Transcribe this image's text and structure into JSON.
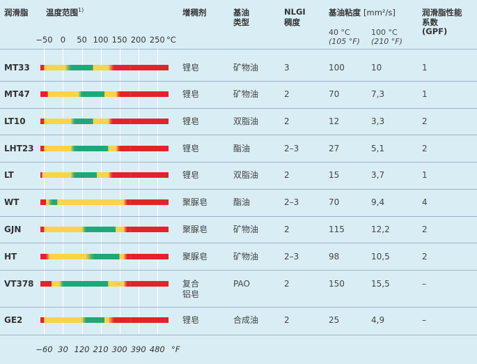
{
  "headers": {
    "grease": "润滑脂",
    "temp_range": "温度范围",
    "temp_range_note": "1)",
    "thickener": "增稠剂",
    "base_oil_type_1": "基油",
    "base_oil_type_2": "类型",
    "nlgi_1": "NLGI",
    "nlgi_2": "稠度",
    "viscosity": "基油粘度",
    "viscosity_unit": "[mm²/s]",
    "visc_40": "40 °C",
    "visc_40_f": "(105 °F)",
    "visc_100": "100 °C",
    "visc_100_f": "(210 °F)",
    "gpf_1": "润滑脂性能",
    "gpf_2": "系数",
    "gpf_3": "(GPF)"
  },
  "celsius_ticks": [
    "−50",
    "0",
    "50",
    "100",
    "150",
    "200",
    "250"
  ],
  "celsius_unit": "°C",
  "fahrenheit_ticks": [
    "−60",
    "30",
    "120",
    "210",
    "300",
    "390",
    "480"
  ],
  "fahrenheit_unit": "°F",
  "colors": {
    "red": "#e3232b",
    "yellow": "#f9d44a",
    "green": "#21a67a",
    "background": "#d9edf5"
  },
  "rows": [
    {
      "name": "MT33",
      "thickener": "锂皂",
      "oil": "矿物油",
      "nlgi": "3",
      "v40": "100",
      "v100": "10",
      "gpf": "1",
      "bands": [
        [
          -60,
          -50,
          "red"
        ],
        [
          -50,
          5,
          "yellow"
        ],
        [
          5,
          20,
          "y2g"
        ],
        [
          20,
          80,
          "green"
        ],
        [
          80,
          120,
          "yellow"
        ],
        [
          120,
          135,
          "y2r"
        ],
        [
          135,
          180,
          "red"
        ]
      ]
    },
    {
      "name": "MT47",
      "thickener": "锂皂",
      "oil": "矿物油",
      "nlgi": "2",
      "v40": "70",
      "v100": "7,3",
      "gpf": "1",
      "bands": [
        [
          -60,
          -40,
          "red"
        ],
        [
          -40,
          40,
          "yellow"
        ],
        [
          40,
          50,
          "y2g"
        ],
        [
          50,
          110,
          "green"
        ],
        [
          110,
          140,
          "yellow"
        ],
        [
          140,
          150,
          "y2r"
        ],
        [
          150,
          180,
          "red"
        ]
      ]
    },
    {
      "name": "LT10",
      "thickener": "锂皂",
      "oil": "双脂油",
      "nlgi": "2",
      "v40": "12",
      "v100": "3,3",
      "gpf": "2",
      "bands": [
        [
          -60,
          -50,
          "red"
        ],
        [
          -50,
          20,
          "yellow"
        ],
        [
          20,
          30,
          "y2g"
        ],
        [
          30,
          80,
          "green"
        ],
        [
          80,
          120,
          "yellow"
        ],
        [
          120,
          130,
          "y2r"
        ],
        [
          130,
          180,
          "red"
        ]
      ]
    },
    {
      "name": "LHT23",
      "thickener": "锂皂",
      "oil": "酯油",
      "nlgi": "2–3",
      "v40": "27",
      "v100": "5,1",
      "gpf": "2",
      "bands": [
        [
          -60,
          -50,
          "red"
        ],
        [
          -50,
          20,
          "yellow"
        ],
        [
          20,
          30,
          "y2g"
        ],
        [
          30,
          120,
          "green"
        ],
        [
          120,
          140,
          "yellow"
        ],
        [
          140,
          150,
          "y2r"
        ],
        [
          150,
          180,
          "red"
        ]
      ]
    },
    {
      "name": "LT",
      "thickener": "锂皂",
      "oil": "双脂油",
      "nlgi": "2",
      "v40": "15",
      "v100": "3,7",
      "gpf": "1",
      "bands": [
        [
          -60,
          -55,
          "red"
        ],
        [
          -55,
          20,
          "yellow"
        ],
        [
          20,
          30,
          "y2g"
        ],
        [
          30,
          90,
          "green"
        ],
        [
          90,
          120,
          "yellow"
        ],
        [
          120,
          130,
          "y2r"
        ],
        [
          130,
          180,
          "red"
        ]
      ]
    },
    {
      "name": "WT",
      "thickener": "聚脲皂",
      "oil": "酯油",
      "nlgi": "2–3",
      "v40": "70",
      "v100": "9,4",
      "gpf": "4",
      "bands": [
        [
          -60,
          -45,
          "red"
        ],
        [
          -45,
          -40,
          "yellow"
        ],
        [
          -40,
          -30,
          "y2g"
        ],
        [
          -30,
          -15,
          "green"
        ],
        [
          -15,
          160,
          "yellow"
        ],
        [
          160,
          170,
          "y2r"
        ],
        [
          170,
          180,
          "red"
        ]
      ]
    },
    {
      "name": "GJN",
      "thickener": "聚脲皂",
      "oil": "矿物油",
      "nlgi": "2",
      "v40": "115",
      "v100": "12,2",
      "gpf": "2",
      "bands": [
        [
          -60,
          -50,
          "red"
        ],
        [
          -50,
          50,
          "yellow"
        ],
        [
          50,
          60,
          "y2g"
        ],
        [
          60,
          140,
          "green"
        ],
        [
          140,
          160,
          "yellow"
        ],
        [
          160,
          170,
          "y2r"
        ],
        [
          170,
          180,
          "red"
        ]
      ]
    },
    {
      "name": "HT",
      "thickener": "聚脲皂",
      "oil": "矿物油",
      "nlgi": "2–3",
      "v40": "98",
      "v100": "10,5",
      "gpf": "2",
      "bands": [
        [
          -60,
          -45,
          "red"
        ],
        [
          -45,
          -35,
          "r2y"
        ],
        [
          -35,
          60,
          "yellow"
        ],
        [
          60,
          80,
          "y2g"
        ],
        [
          80,
          150,
          "green"
        ],
        [
          150,
          160,
          "yellow"
        ],
        [
          160,
          170,
          "y2r"
        ],
        [
          170,
          180,
          "red"
        ]
      ]
    },
    {
      "name": "VT378",
      "thickener_1": "复合",
      "thickener_2": "铝皂",
      "oil": "PAO",
      "nlgi": "2",
      "v40": "150",
      "v100": "15,5",
      "gpf": "–",
      "bands": [
        [
          -60,
          -30,
          "red"
        ],
        [
          -30,
          -10,
          "yellow"
        ],
        [
          -10,
          0,
          "y2g"
        ],
        [
          0,
          120,
          "green"
        ],
        [
          120,
          160,
          "yellow"
        ],
        [
          160,
          170,
          "y2r"
        ],
        [
          170,
          180,
          "red"
        ]
      ]
    },
    {
      "name": "GE2",
      "thickener": "锂皂",
      "oil": "合成油",
      "nlgi": "2",
      "v40": "25",
      "v100": "4,9",
      "gpf": "–",
      "bands": [
        [
          -60,
          -50,
          "red"
        ],
        [
          -50,
          50,
          "yellow"
        ],
        [
          50,
          60,
          "y2g"
        ],
        [
          60,
          110,
          "green"
        ],
        [
          110,
          120,
          "yellow"
        ],
        [
          120,
          135,
          "y2r"
        ],
        [
          135,
          180,
          "red"
        ]
      ]
    }
  ]
}
